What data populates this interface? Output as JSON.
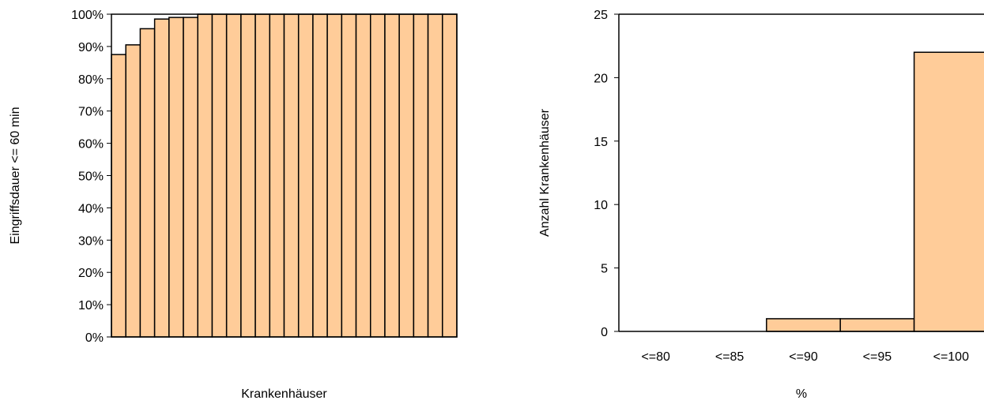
{
  "colors": {
    "bar_fill": "#FFCC99",
    "bar_stroke": "#000000",
    "background": "#FFFFFF"
  },
  "chart_data": [
    {
      "type": "bar",
      "title": "",
      "xlabel": "Krankenhäuser",
      "ylabel": "Eingriffsdauer <= 60 min",
      "ylim": [
        0,
        100
      ],
      "unit": "%",
      "y_ticks": [
        "0%",
        "10%",
        "20%",
        "30%",
        "40%",
        "50%",
        "60%",
        "70%",
        "80%",
        "90%",
        "100%"
      ],
      "values": [
        87.5,
        90.5,
        95.5,
        98.5,
        99,
        99,
        100,
        100,
        100,
        100,
        100,
        100,
        100,
        100,
        100,
        100,
        100,
        100,
        100,
        100,
        100,
        100,
        100,
        100
      ],
      "grid": false,
      "legend": "none"
    },
    {
      "type": "bar",
      "title": "",
      "xlabel": "%",
      "ylabel": "Anzahl Krankenhäuser",
      "ylim": [
        0,
        25
      ],
      "y_ticks": [
        "0",
        "5",
        "10",
        "15",
        "20",
        "25"
      ],
      "categories": [
        "<=80",
        "<=85",
        "<=90",
        "<=95",
        "<=100"
      ],
      "values": [
        0,
        0,
        1,
        1,
        22
      ],
      "grid": false,
      "legend": "none"
    }
  ]
}
